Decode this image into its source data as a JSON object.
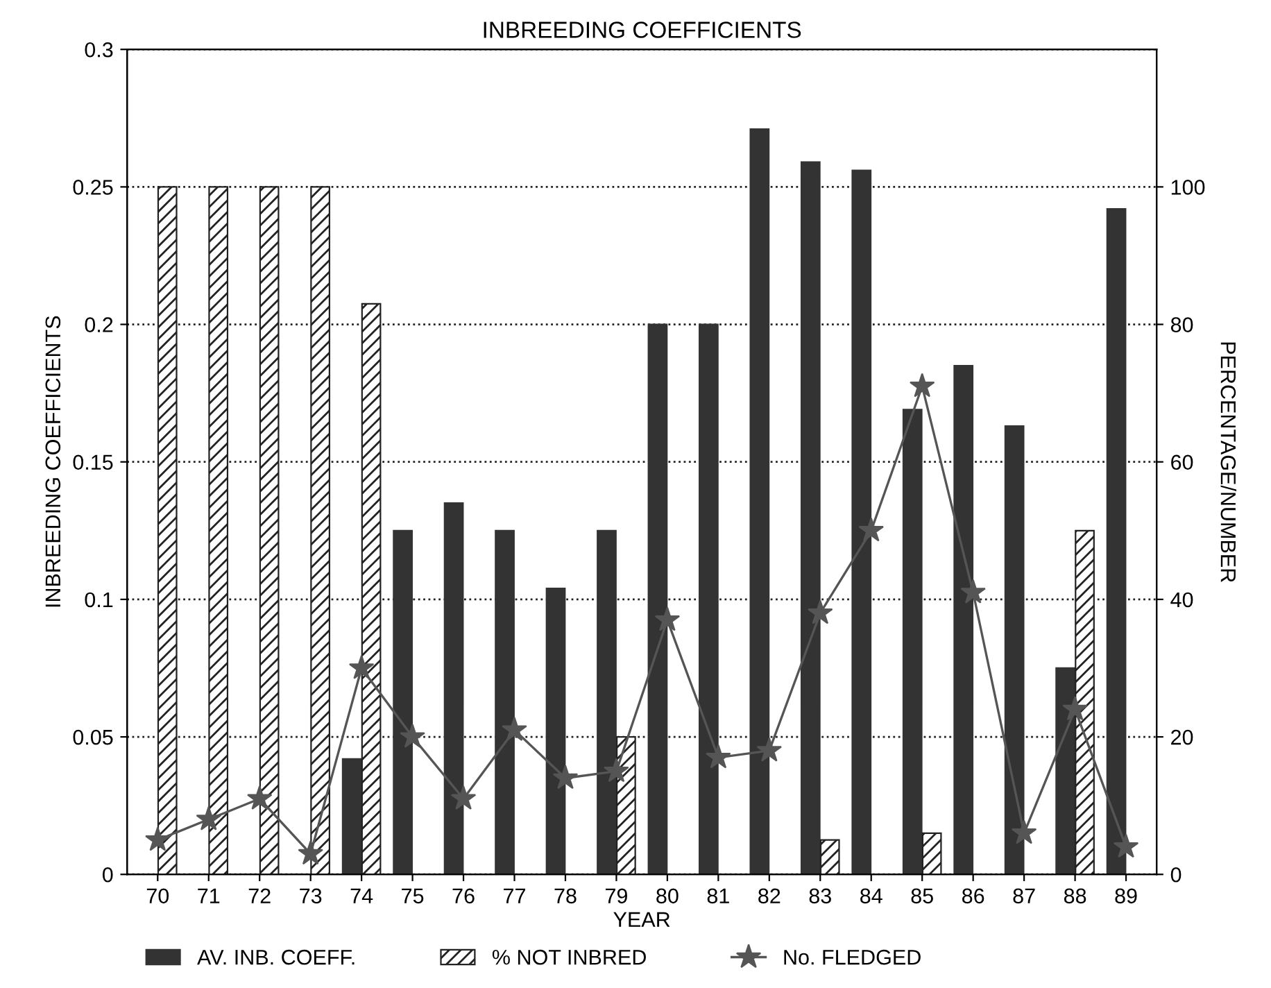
{
  "chart_data": {
    "type": "bar",
    "title": "INBREEDING COEFFICIENTS",
    "xlabel": "YEAR",
    "ylabel": "INBREEDING COEFFICIENTS",
    "y2label": "PERCENTAGE/NUMBER",
    "categories": [
      "70",
      "71",
      "72",
      "73",
      "74",
      "75",
      "76",
      "77",
      "78",
      "79",
      "80",
      "81",
      "82",
      "83",
      "84",
      "85",
      "86",
      "87",
      "88",
      "89"
    ],
    "series": [
      {
        "name": "AV. INB. COEFF.",
        "color": "#333333",
        "values": [
          0,
          0,
          0,
          0,
          0.042,
          0.125,
          0.135,
          0.125,
          0.104,
          0.125,
          0.2,
          0.2,
          0.271,
          0.259,
          0.256,
          0.169,
          0.185,
          0.163,
          0.075,
          0.242
        ]
      },
      {
        "name": "% NOT INBRED",
        "color": "#222222",
        "axis": "y2",
        "values": [
          100,
          100,
          100,
          100,
          83,
          0,
          0,
          0,
          0,
          20,
          0,
          0,
          0,
          5,
          0,
          6,
          0,
          0,
          50,
          0
        ]
      },
      {
        "name": "No. FLEDGED",
        "type": "line",
        "color": "#555555",
        "axis": "y2",
        "marker": "star",
        "values": [
          5,
          8,
          11,
          3,
          30,
          20,
          11,
          21,
          14,
          15,
          37,
          17,
          18,
          38,
          50,
          71,
          41,
          6,
          24,
          4
        ]
      }
    ],
    "ylim": [
      0,
      0.3
    ],
    "yticks": [
      0,
      0.05,
      0.1,
      0.15,
      0.2,
      0.25,
      0.3
    ],
    "y2lim": [
      0,
      120
    ],
    "y2ticks": [
      0,
      20,
      40,
      60,
      80,
      100
    ],
    "grid": "y",
    "legend": "bottom"
  }
}
